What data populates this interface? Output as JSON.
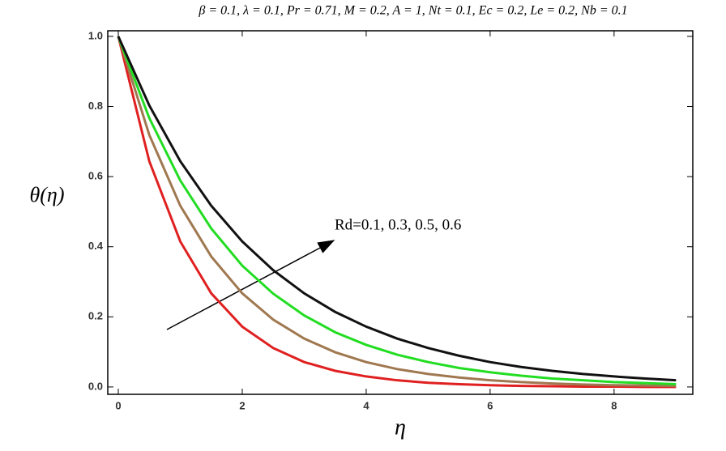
{
  "chart_data": {
    "type": "line",
    "title": "β = 0.1, λ = 0.1, Pr = 0.71, M = 0.2, A = 1, Nt = 0.1, Ec = 0.2, Le = 0.2, Nb = 0.1",
    "x_label": "η",
    "y_label": "θ(η)",
    "annotation": "Rd=0.1, 0.3, 0.5, 0.6",
    "x": [
      0,
      0.5,
      1,
      1.5,
      2,
      2.5,
      3,
      3.5,
      4,
      4.5,
      5,
      5.5,
      6,
      6.5,
      7,
      7.5,
      8,
      8.5,
      9
    ],
    "series": [
      {
        "color": "#e02020",
        "values": [
          1,
          0.644,
          0.415,
          0.267,
          0.172,
          0.111,
          0.071,
          0.046,
          0.03,
          0.019,
          0.012,
          0.008,
          0.005,
          0.003,
          0.002,
          0.001,
          0.001,
          0,
          0
        ]
      },
      {
        "color": "#a07850",
        "values": [
          1,
          0.719,
          0.517,
          0.372,
          0.267,
          0.192,
          0.138,
          0.099,
          0.071,
          0.051,
          0.037,
          0.027,
          0.019,
          0.014,
          0.01,
          0.007,
          0.005,
          0.004,
          0.003
        ]
      },
      {
        "color": "#22dd22",
        "values": [
          1,
          0.767,
          0.589,
          0.452,
          0.346,
          0.266,
          0.204,
          0.156,
          0.12,
          0.092,
          0.071,
          0.054,
          0.042,
          0.032,
          0.024,
          0.019,
          0.014,
          0.011,
          0.008
        ]
      },
      {
        "color": "#111111",
        "values": [
          1,
          0.803,
          0.644,
          0.517,
          0.415,
          0.333,
          0.267,
          0.214,
          0.172,
          0.138,
          0.111,
          0.089,
          0.071,
          0.057,
          0.046,
          0.037,
          0.03,
          0.024,
          0.019
        ]
      }
    ],
    "xlim": [
      -0.17,
      9.27
    ],
    "ylim": [
      -0.021,
      1.016
    ],
    "xticks": [
      0,
      2,
      4,
      6,
      8
    ],
    "yticks": [
      {
        "value": 0,
        "label": "0.0"
      },
      0.2,
      0.4,
      0.6,
      0.8,
      {
        "value": 1,
        "label": "1.0"
      }
    ]
  }
}
